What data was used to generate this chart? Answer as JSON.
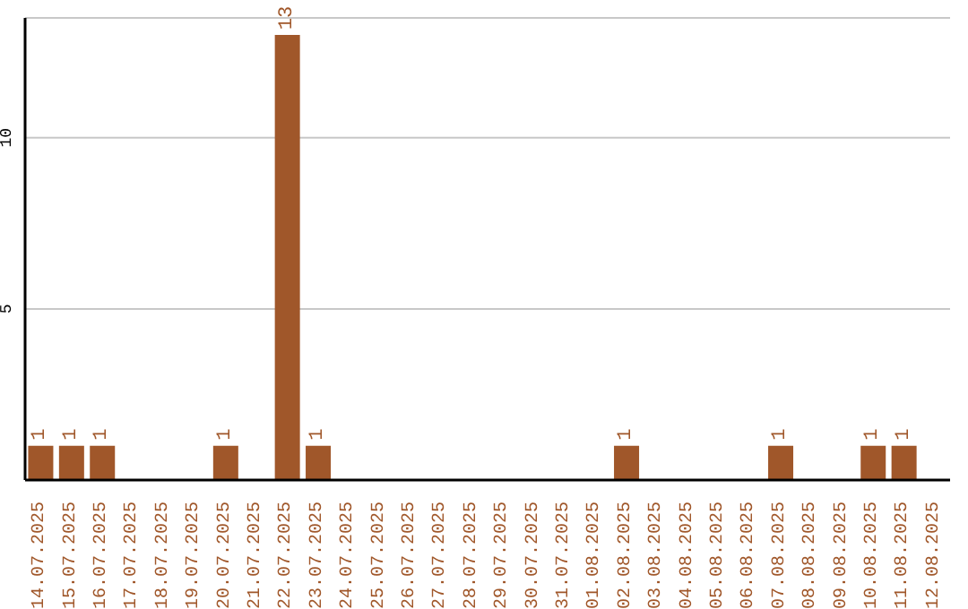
{
  "chart_data": {
    "type": "bar",
    "categories": [
      "14.07.2025",
      "15.07.2025",
      "16.07.2025",
      "17.07.2025",
      "18.07.2025",
      "19.07.2025",
      "20.07.2025",
      "21.07.2025",
      "22.07.2025",
      "23.07.2025",
      "24.07.2025",
      "25.07.2025",
      "26.07.2025",
      "27.07.2025",
      "28.07.2025",
      "29.07.2025",
      "30.07.2025",
      "31.07.2025",
      "01.08.2025",
      "02.08.2025",
      "03.08.2025",
      "04.08.2025",
      "05.08.2025",
      "06.08.2025",
      "07.08.2025",
      "08.08.2025",
      "09.08.2025",
      "10.08.2025",
      "11.08.2025",
      "12.08.2025"
    ],
    "values": [
      1,
      1,
      1,
      0,
      0,
      0,
      1,
      0,
      13,
      1,
      0,
      0,
      0,
      0,
      0,
      0,
      0,
      0,
      0,
      1,
      0,
      0,
      0,
      0,
      1,
      0,
      0,
      1,
      1,
      0
    ],
    "value_labels": [
      "1",
      "1",
      "1",
      null,
      null,
      null,
      "1",
      null,
      "13",
      "1",
      null,
      null,
      null,
      null,
      null,
      null,
      null,
      null,
      null,
      "1",
      null,
      null,
      null,
      null,
      "1",
      null,
      null,
      "1",
      "1",
      null
    ],
    "color": "#a0572a",
    "ylim": [
      0,
      13.5
    ],
    "yticks": [
      5,
      10
    ],
    "grid": "y"
  }
}
